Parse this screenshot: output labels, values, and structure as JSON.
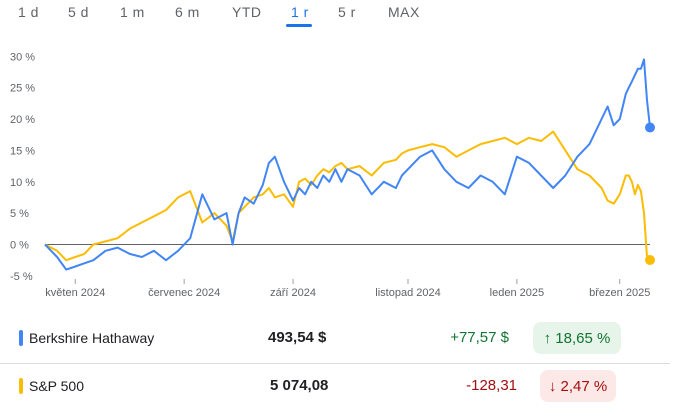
{
  "tabs": [
    {
      "label": "1 d",
      "active": false
    },
    {
      "label": "5 d",
      "active": false
    },
    {
      "label": "1 m",
      "active": false
    },
    {
      "label": "6 m",
      "active": false
    },
    {
      "label": "YTD",
      "active": false
    },
    {
      "label": "1 r",
      "active": true
    },
    {
      "label": "5 r",
      "active": false
    },
    {
      "label": "MAX",
      "active": false
    }
  ],
  "chart_data": {
    "type": "line",
    "title": "",
    "xlabel": "",
    "ylabel": "",
    "y_ticks": [
      -5,
      0,
      5,
      10,
      15,
      20,
      25,
      30
    ],
    "y_tick_labels": [
      "-5 %",
      "0 %",
      "5 %",
      "10 %",
      "15 %",
      "20 %",
      "25 %",
      "30 %"
    ],
    "x_ticks": [
      0.05,
      0.23,
      0.41,
      0.6,
      0.78,
      0.95
    ],
    "x_tick_labels": [
      "květen 2024",
      "červenec 2024",
      "září 2024",
      "listopad 2024",
      "leden 2025",
      "březen 2025"
    ],
    "xlim": [
      0,
      1
    ],
    "ylim": [
      -5.5,
      31
    ],
    "zero_line": 0,
    "series": [
      {
        "name": "Berkshire Hathaway",
        "color": "#4285f4",
        "x": [
          0,
          0.02,
          0.035,
          0.05,
          0.065,
          0.08,
          0.1,
          0.12,
          0.14,
          0.16,
          0.18,
          0.2,
          0.22,
          0.24,
          0.26,
          0.28,
          0.3,
          0.31,
          0.32,
          0.33,
          0.345,
          0.36,
          0.37,
          0.38,
          0.395,
          0.41,
          0.42,
          0.43,
          0.44,
          0.45,
          0.46,
          0.47,
          0.48,
          0.49,
          0.5,
          0.52,
          0.54,
          0.56,
          0.58,
          0.59,
          0.6,
          0.62,
          0.64,
          0.66,
          0.68,
          0.7,
          0.72,
          0.74,
          0.76,
          0.78,
          0.8,
          0.82,
          0.84,
          0.86,
          0.88,
          0.9,
          0.92,
          0.93,
          0.94,
          0.95,
          0.96,
          0.965,
          0.97,
          0.975,
          0.98,
          0.985,
          0.99,
          0.995,
          1.0
        ],
        "y": [
          0,
          -2,
          -4,
          -3.5,
          -3,
          -2.5,
          -1,
          -0.5,
          -1.5,
          -2,
          -1,
          -2.5,
          -1,
          1,
          8,
          4,
          5,
          0,
          5,
          7.5,
          6.5,
          9.5,
          13,
          14,
          10,
          7,
          9,
          8,
          10,
          9,
          11,
          10,
          12,
          10,
          12,
          11,
          8,
          10,
          9,
          11,
          12,
          14,
          15,
          12,
          10,
          9,
          11,
          10,
          8,
          14,
          13,
          11,
          9,
          11,
          14,
          16,
          20,
          22,
          19,
          20,
          24,
          25,
          26,
          27,
          28,
          28,
          29.5,
          23,
          18.65
        ]
      },
      {
        "name": "S&P 500",
        "color": "#fbbc04",
        "x": [
          0,
          0.02,
          0.035,
          0.05,
          0.065,
          0.08,
          0.1,
          0.12,
          0.14,
          0.16,
          0.18,
          0.2,
          0.22,
          0.24,
          0.26,
          0.28,
          0.3,
          0.31,
          0.32,
          0.33,
          0.345,
          0.36,
          0.37,
          0.38,
          0.395,
          0.41,
          0.42,
          0.43,
          0.44,
          0.45,
          0.46,
          0.47,
          0.48,
          0.49,
          0.5,
          0.52,
          0.54,
          0.56,
          0.58,
          0.59,
          0.6,
          0.62,
          0.64,
          0.66,
          0.68,
          0.7,
          0.72,
          0.74,
          0.76,
          0.78,
          0.8,
          0.82,
          0.84,
          0.86,
          0.88,
          0.9,
          0.92,
          0.93,
          0.94,
          0.95,
          0.96,
          0.965,
          0.97,
          0.975,
          0.98,
          0.985,
          0.99,
          0.995,
          1.0
        ],
        "y": [
          0,
          -1,
          -2.5,
          -2,
          -1.5,
          0,
          0.5,
          1,
          2.5,
          3.5,
          4.5,
          5.5,
          7.5,
          8.5,
          3.5,
          5,
          3,
          0.5,
          5,
          6,
          7.5,
          8,
          9,
          7.5,
          8,
          6,
          10,
          10.5,
          9.5,
          11,
          12,
          11.5,
          12.5,
          13,
          12,
          12.5,
          11,
          13,
          13.5,
          14.5,
          15,
          15.5,
          16,
          15.5,
          14,
          15,
          16,
          16.5,
          17,
          16,
          17,
          16.5,
          18,
          15,
          12,
          11,
          9,
          7,
          6.5,
          8,
          11,
          11,
          10,
          8,
          9.5,
          8.5,
          5,
          -2,
          -2.47
        ]
      }
    ]
  },
  "legend": [
    {
      "name": "Berkshire Hathaway",
      "color": "#4285f4",
      "price": "493,54 $",
      "change": "+77,57 $",
      "percent": "↑ 18,65 %",
      "direction": "up"
    },
    {
      "name": "S&P 500",
      "color": "#fbbc04",
      "price": "5 074,08",
      "change": "-128,31",
      "percent": "↓ 2,47 %",
      "direction": "down"
    }
  ]
}
